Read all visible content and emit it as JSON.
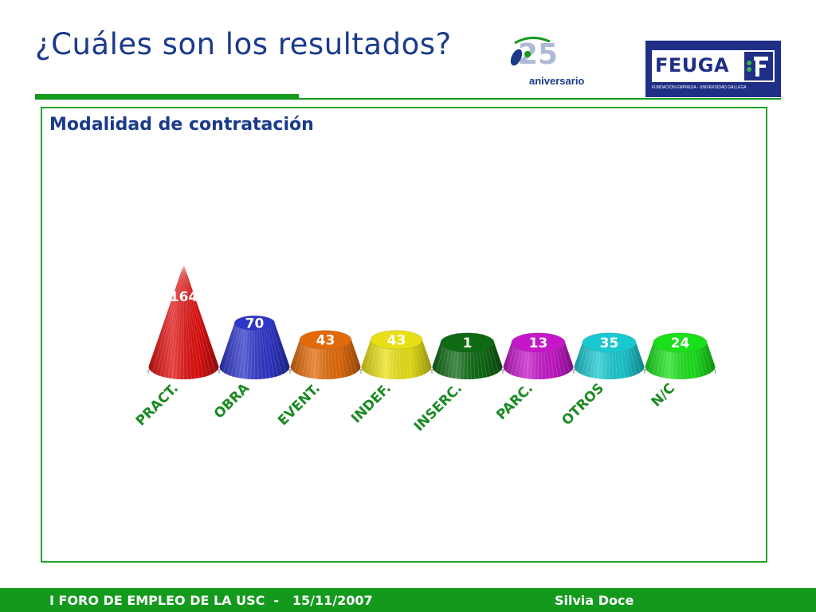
{
  "slide": {
    "title": "¿Cuáles son los resultados?",
    "subtitle": "Modalidad de contratación",
    "logo_anniversary": "aniversario",
    "logo_org": "FEUGA",
    "logo_org_tagline": "FUNDACIÓN EMPRESA - UNIVERSIDAD GALLEGA"
  },
  "footer": {
    "left": "I FORO DE EMPLEO DE LA USC  -   15/11/2007",
    "right": "Silvia Doce"
  },
  "colors": {
    "accent_green": "#139a1c",
    "title_blue": "#1a3a8a",
    "label_green": "#1a8a22"
  },
  "chart_data": {
    "type": "bar",
    "style": "3d-cone",
    "categories": [
      "PRACT.",
      "OBRA",
      "EVENT.",
      "INDEF.",
      "INSERC.",
      "PARC.",
      "OTROS",
      "N/C"
    ],
    "values": [
      164,
      70,
      43,
      43,
      1,
      13,
      35,
      24
    ],
    "colors": [
      "#e01010",
      "#2d36c8",
      "#e26a0a",
      "#e8e015",
      "#0f6a14",
      "#c418c8",
      "#1ac8d0",
      "#1ae01a"
    ],
    "title": "Modalidad de contratación",
    "xlabel": "",
    "ylabel": ""
  }
}
